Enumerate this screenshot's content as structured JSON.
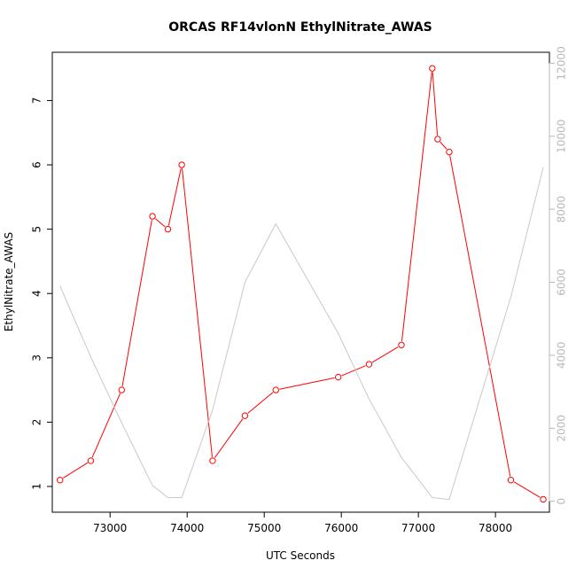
{
  "chart_data": {
    "type": "line",
    "title": "ORCAS RF14vlonN EthylNitrate_AWAS",
    "xlabel": "UTC Seconds",
    "ylabel": "EthylNitrate_AWAS",
    "x_ticks": [
      "73000",
      "74000",
      "75000",
      "76000",
      "77000",
      "78000"
    ],
    "y_ticks": [
      "1",
      "2",
      "3",
      "4",
      "5",
      "6",
      "7"
    ],
    "y2_ticks": [
      "0",
      "2000",
      "4000",
      "6000",
      "8000",
      "10000",
      "12000"
    ],
    "xlim": [
      72250,
      78700
    ],
    "ylim": [
      0.6,
      7.75
    ],
    "y2lim": [
      -300,
      12300
    ],
    "grid": false,
    "series": [
      {
        "color": "#ff0000",
        "axis": "left",
        "markers": true,
        "x": [
          72350,
          72750,
          73150,
          73550,
          73750,
          73930,
          74330,
          74750,
          75150,
          75960,
          76360,
          76780,
          77180,
          77250,
          77400,
          78200,
          78620
        ],
        "y": [
          1.1,
          1.4,
          2.5,
          5.2,
          5.0,
          6.0,
          1.4,
          2.1,
          2.5,
          2.7,
          2.9,
          3.2,
          7.5,
          6.4,
          6.2,
          1.1,
          0.8
        ]
      },
      {
        "color": "#c8c8c8",
        "axis": "right",
        "markers": false,
        "x": [
          72350,
          72750,
          73150,
          73550,
          73750,
          73930,
          74330,
          74750,
          75150,
          75960,
          76360,
          76780,
          77180,
          77400,
          78200,
          78620
        ],
        "y": [
          5900,
          3950,
          2150,
          430,
          100,
          100,
          2500,
          6000,
          7600,
          4600,
          2800,
          1200,
          100,
          50,
          5600,
          9150
        ]
      }
    ]
  }
}
